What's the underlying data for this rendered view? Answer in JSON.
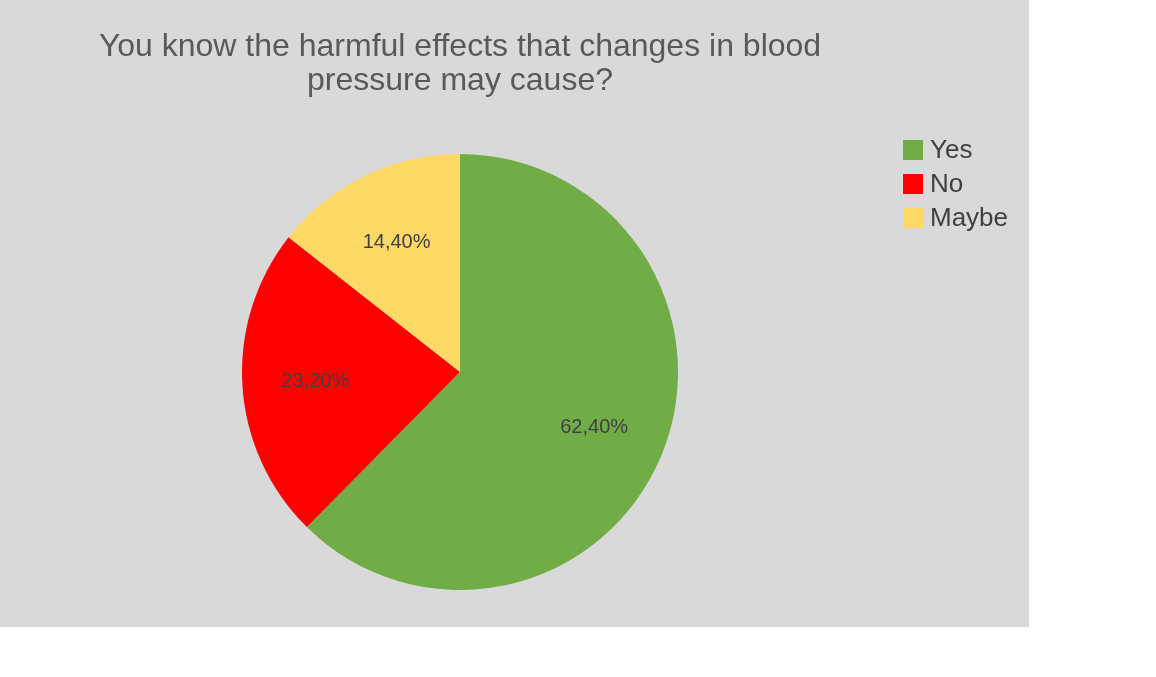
{
  "chart_data": {
    "type": "pie",
    "title": "You know the harmful effects that changes in blood pressure may cause?",
    "categories": [
      "Yes",
      "No",
      "Maybe"
    ],
    "values": [
      62.4,
      23.2,
      14.4
    ],
    "colors": [
      "#70ad47",
      "#ff0000",
      "#ffd966"
    ],
    "value_labels": [
      "62,40%",
      "23,20%",
      "14,40%"
    ],
    "legend": "right"
  }
}
